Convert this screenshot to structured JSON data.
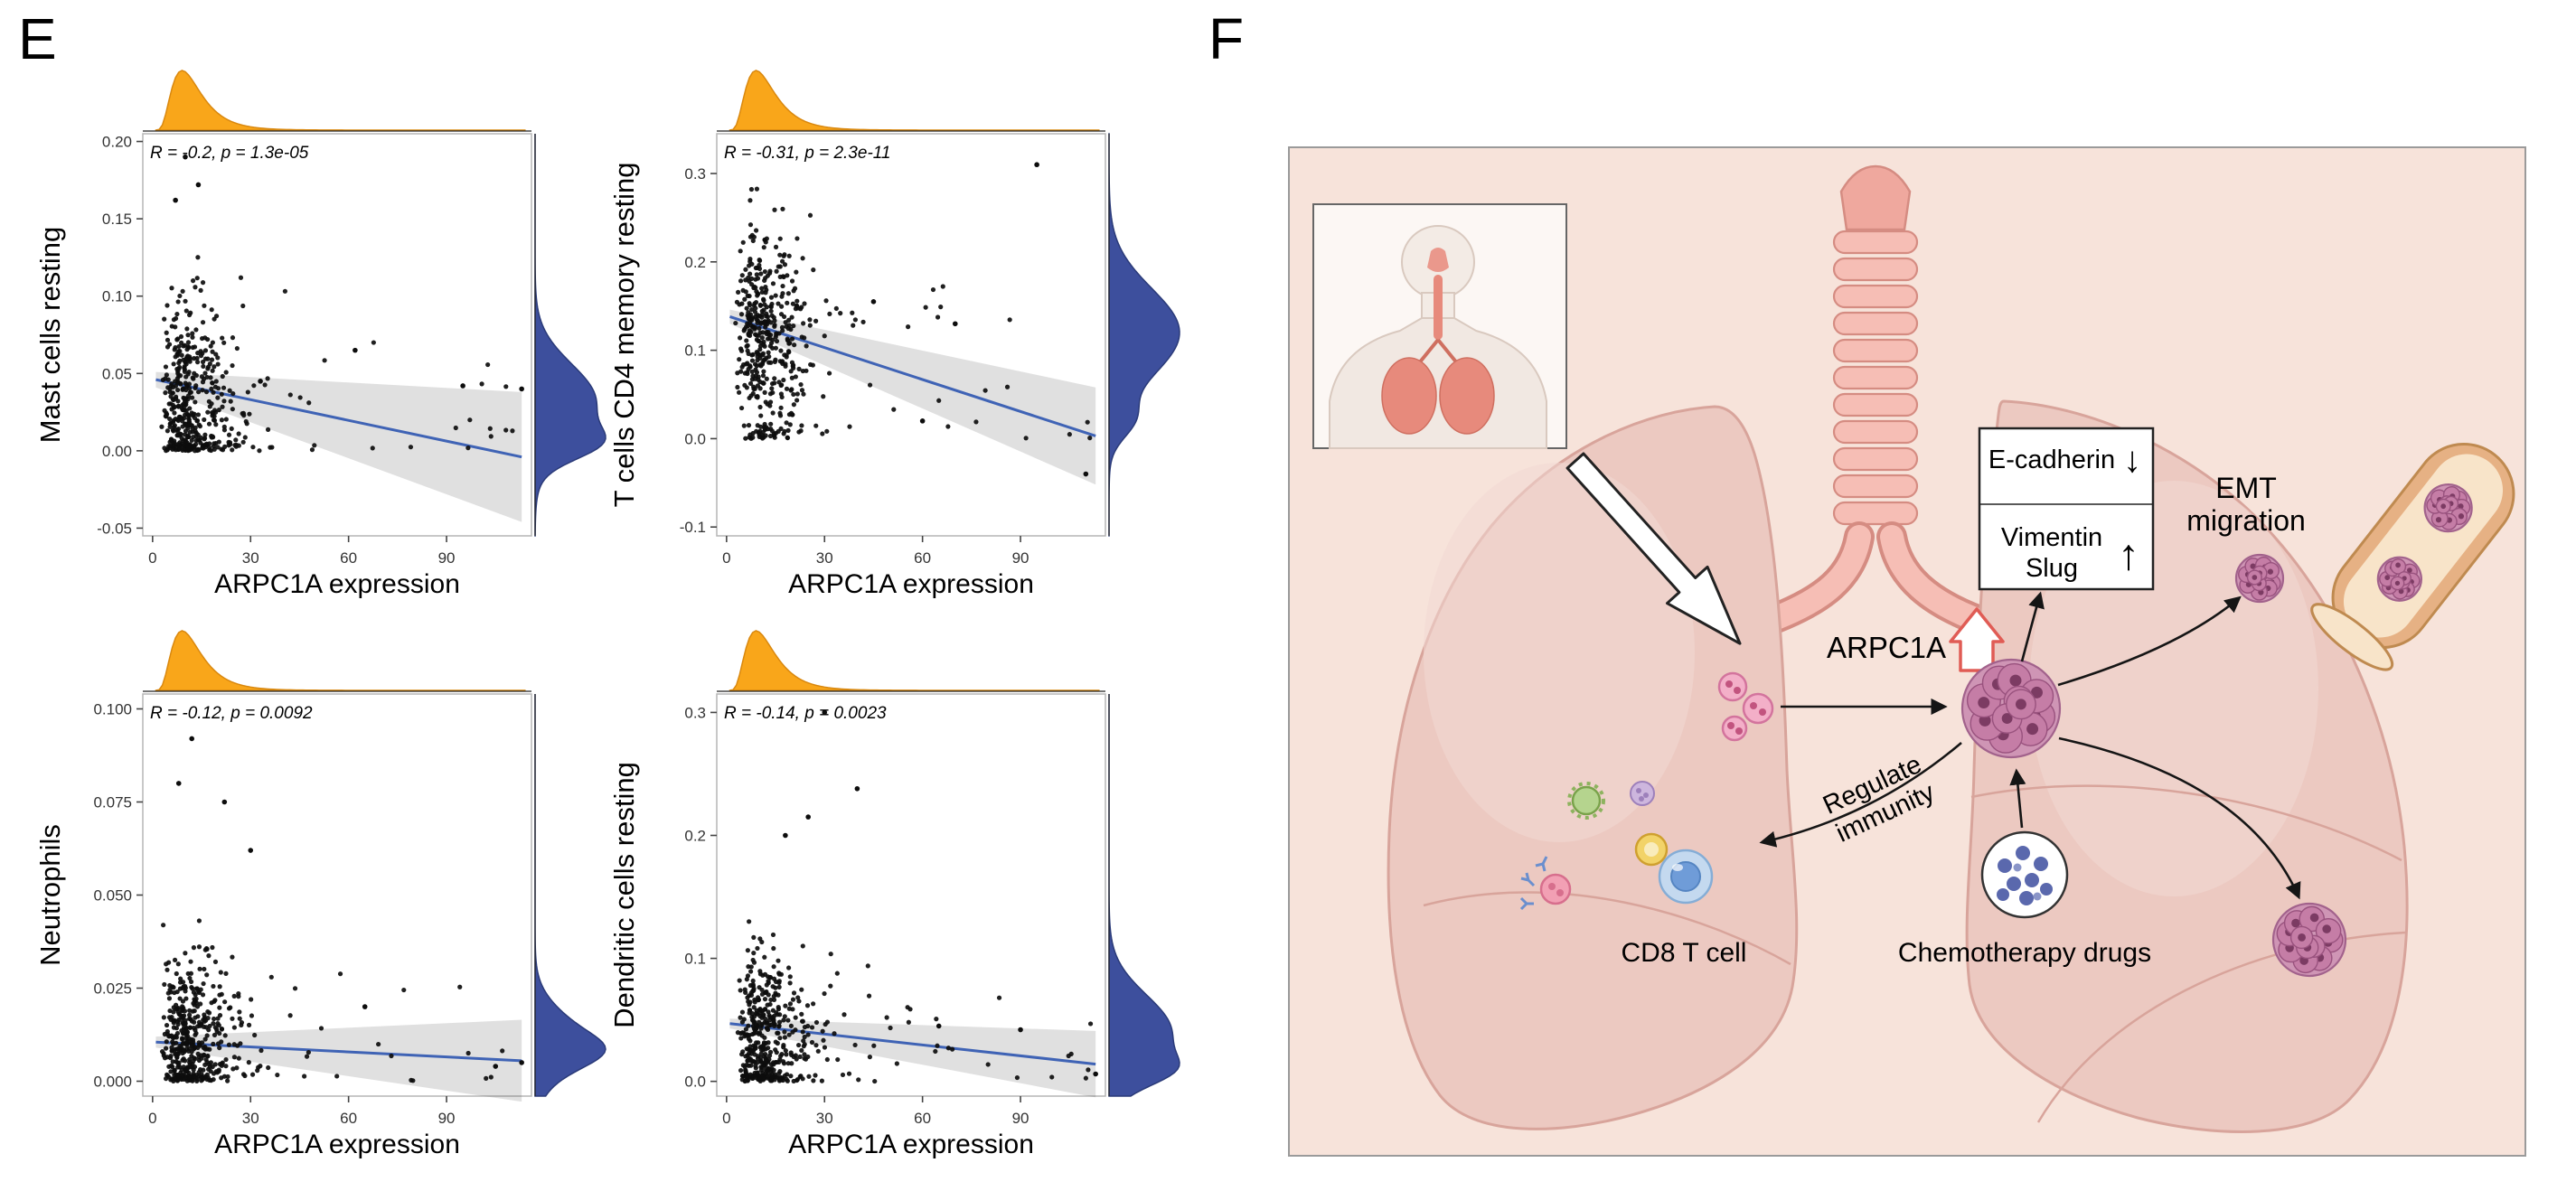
{
  "figure": {
    "panel_e_label": "E",
    "panel_f_label": "F"
  },
  "chart_data": {
    "type": "scatter",
    "description": "Four correlation scatter plots of ARPC1A expression vs immune-cell fractions, each with marginal density plots (orange: x, navy: y), fitted regression line with confidence band, and R/p annotation.",
    "shared": {
      "xlabel": "ARPC1A expression",
      "xlim": [
        -3,
        116
      ],
      "xticks": [
        0,
        30,
        60,
        90
      ],
      "xtick_labels": [
        "0",
        "30",
        "60",
        "90"
      ],
      "x_distribution": {
        "type": "lognormal",
        "mu": 2.45,
        "sigma": 0.5
      },
      "marginal_top_color": "#F9A61A",
      "marginal_top_stroke": "#D9880F",
      "marginal_right_color": "#3D4F9D",
      "marginal_right_stroke": "#2A3A78",
      "trend_color": "#3F63B5",
      "band_color": "rgba(60,60,60,0.16)",
      "point_color": "#0d0d0d"
    },
    "charts": [
      {
        "id": "mast",
        "ylabel": "Mast cells resting",
        "annotation": "R = -0.2, p = 1.3e-05",
        "R": -0.2,
        "p": "1.3e-05",
        "ylim": [
          -0.055,
          0.205
        ],
        "yticks": [
          -0.05,
          0.0,
          0.05,
          0.1,
          0.15,
          0.2
        ],
        "ytick_labels": [
          "-0.05",
          "0.00",
          "0.05",
          "0.10",
          "0.15",
          "0.20"
        ],
        "trend": {
          "x0": 1,
          "y0": 0.046,
          "x1": 113,
          "y1": -0.004,
          "band_w0": 0.005,
          "band_w1": 0.042
        },
        "points_model": {
          "n": 480,
          "seed": 11,
          "y_center": 0.028,
          "y_sd": 0.032,
          "floor": 0,
          "y_max": 0.19,
          "zero_frac": 0.12,
          "zero_span": 0.004
        },
        "density_right": {
          "mean": 0.032,
          "sd": 0.024,
          "spike_at": 0.004,
          "spike_sd": 0.01,
          "spike_w": 0.6
        },
        "outliers": [
          [
            62,
            0.065
          ],
          [
            95,
            0.042
          ],
          [
            113,
            0.04
          ],
          [
            10,
            0.19
          ],
          [
            14,
            0.172
          ],
          [
            7,
            0.162
          ],
          [
            33,
            0.045
          ]
        ]
      },
      {
        "id": "cd4",
        "ylabel": "T cells CD4 memory resting",
        "annotation": "R = -0.31, p = 2.3e-11",
        "R": -0.31,
        "p": "2.3e-11",
        "ylim": [
          -0.11,
          0.345
        ],
        "yticks": [
          -0.1,
          0.0,
          0.1,
          0.2,
          0.3
        ],
        "ytick_labels": [
          "-0.1",
          "0.0",
          "0.1",
          "0.2",
          "0.3"
        ],
        "trend": {
          "x0": 1,
          "y0": 0.138,
          "x1": 113,
          "y1": 0.003,
          "band_w0": 0.008,
          "band_w1": 0.055
        },
        "points_model": {
          "n": 470,
          "seed": 22,
          "y_center": 0.12,
          "y_sd": 0.055,
          "floor": 0,
          "y_max": 0.33,
          "zero_frac": 0.08,
          "zero_span": 0.015
        },
        "density_right": {
          "mean": 0.12,
          "sd": 0.05,
          "spike_at": 0.02,
          "spike_sd": 0.02,
          "spike_w": 0.25
        },
        "outliers": [
          [
            95,
            0.31
          ],
          [
            110,
            -0.04
          ],
          [
            70,
            0.13
          ],
          [
            45,
            0.155
          ],
          [
            60,
            0.02
          ]
        ]
      },
      {
        "id": "neutrophils",
        "ylabel": "Neutrophils",
        "annotation": "R = -0.12, p = 0.0092",
        "R": -0.12,
        "p": "0.0092",
        "ylim": [
          -0.004,
          0.104
        ],
        "yticks": [
          0.0,
          0.025,
          0.05,
          0.075,
          0.1
        ],
        "ytick_labels": [
          "0.000",
          "0.025",
          "0.050",
          "0.075",
          "0.100"
        ],
        "trend": {
          "x0": 1,
          "y0": 0.0105,
          "x1": 113,
          "y1": 0.0055,
          "band_w0": 0.0015,
          "band_w1": 0.011
        },
        "points_model": {
          "n": 470,
          "seed": 33,
          "y_center": 0.01,
          "y_sd": 0.011,
          "floor": 0,
          "y_max": 0.08,
          "zero_frac": 0.06,
          "zero_span": 0.002
        },
        "density_right": {
          "mean": 0.01,
          "sd": 0.008,
          "spike_at": 0.008,
          "spike_sd": 0.004,
          "spike_w": 0.5
        },
        "outliers": [
          [
            12,
            0.092
          ],
          [
            22,
            0.075
          ],
          [
            30,
            0.062
          ],
          [
            8,
            0.08
          ],
          [
            65,
            0.02
          ],
          [
            113,
            0.005
          ],
          [
            105,
            0.004
          ]
        ]
      },
      {
        "id": "dendritic",
        "ylabel": "Dendritic cells resting",
        "annotation": "R = -0.14, p = 0.0023",
        "R": -0.14,
        "p": "0.0023",
        "ylim": [
          -0.012,
          0.315
        ],
        "yticks": [
          0.0,
          0.1,
          0.2,
          0.3
        ],
        "ytick_labels": [
          "0.0",
          "0.1",
          "0.2",
          "0.3"
        ],
        "trend": {
          "x0": 1,
          "y0": 0.047,
          "x1": 113,
          "y1": 0.014,
          "band_w0": 0.004,
          "band_w1": 0.027
        },
        "points_model": {
          "n": 470,
          "seed": 44,
          "y_center": 0.035,
          "y_sd": 0.035,
          "floor": 0,
          "y_max": 0.27,
          "zero_frac": 0.1,
          "zero_span": 0.005
        },
        "density_right": {
          "mean": 0.04,
          "sd": 0.03,
          "spike_at": 0.008,
          "spike_sd": 0.012,
          "spike_w": 0.5
        },
        "outliers": [
          [
            30,
            0.3
          ],
          [
            40,
            0.238
          ],
          [
            25,
            0.215
          ],
          [
            18,
            0.2
          ],
          [
            65,
            0.045
          ],
          [
            90,
            0.042
          ],
          [
            113,
            0.006
          ]
        ]
      }
    ]
  },
  "diagram": {
    "labels": {
      "e_cadherin": "E-cadherin",
      "down_arrow": "↓",
      "vimentin": "Vimentin",
      "slug": "Slug",
      "up_arrow": "↑",
      "emt_line1": "EMT",
      "emt_line2": "migration",
      "arpc1a": "ARPC1A",
      "regulate_line1": "Regulate",
      "regulate_line2": "immunity",
      "cd8": "CD8 T cell",
      "chemo": "Chemotherapy drugs"
    }
  }
}
